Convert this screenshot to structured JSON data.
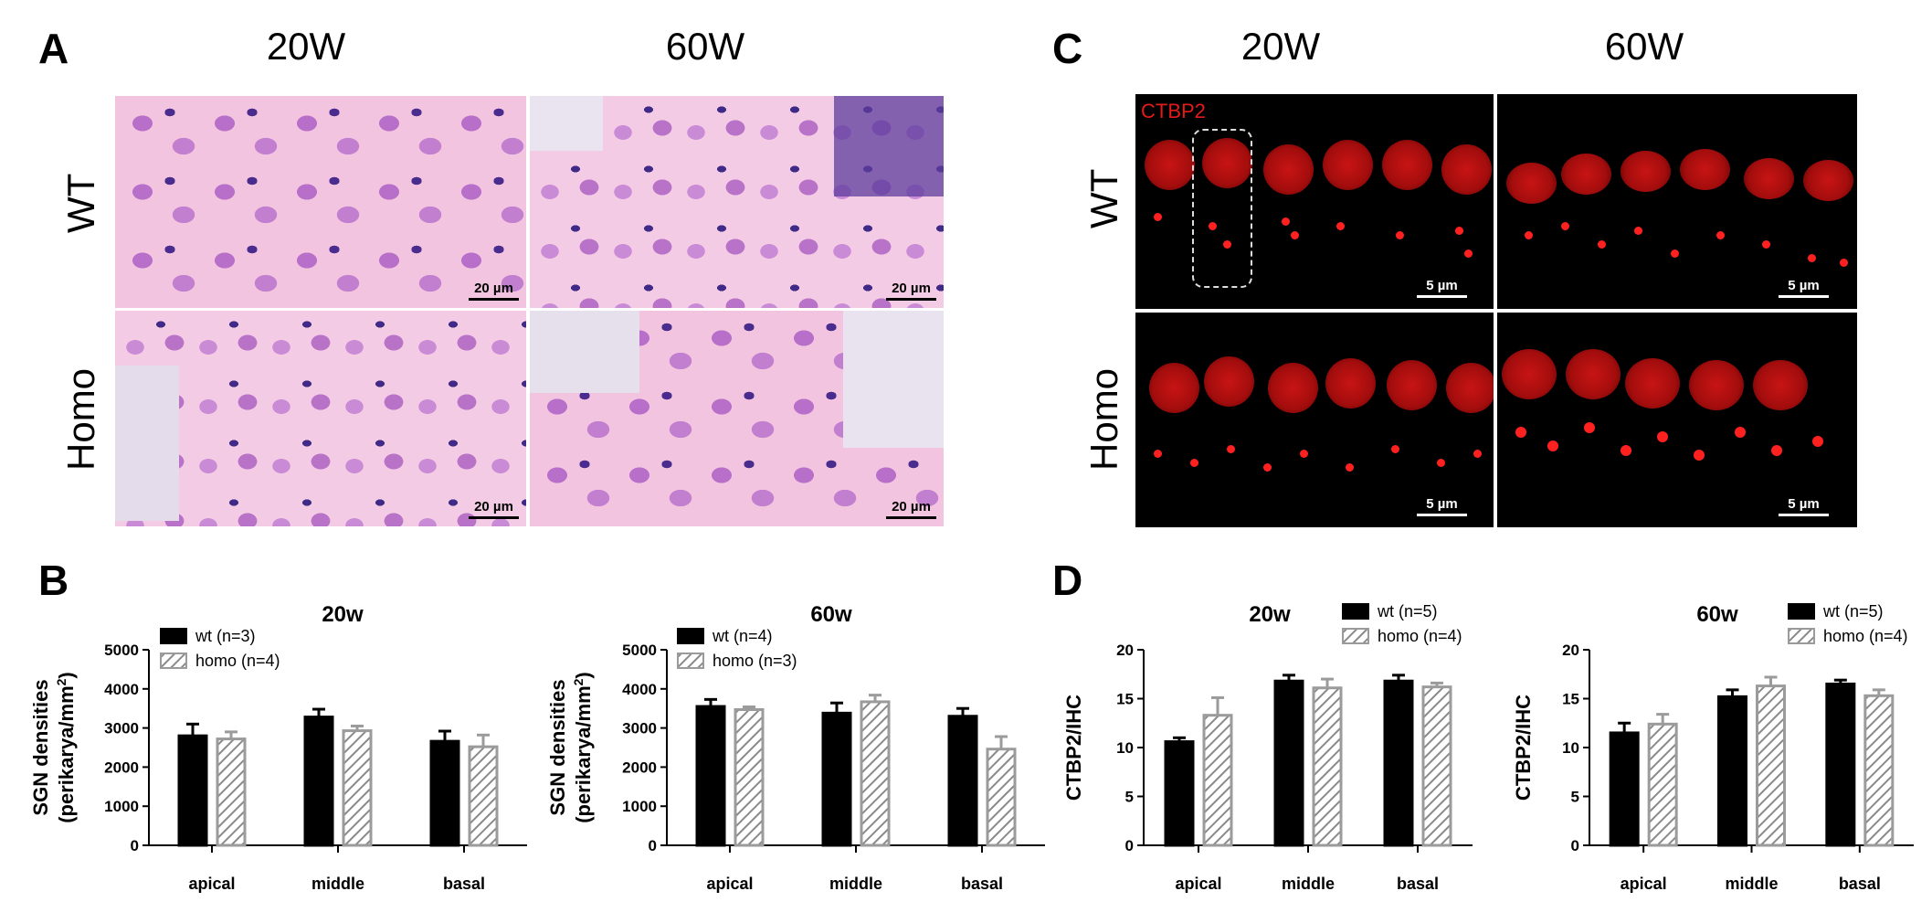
{
  "panels": {
    "A": {
      "label": "A",
      "col_titles": [
        "20W",
        "60W"
      ],
      "row_titles": [
        "WT",
        "Homo"
      ],
      "scale_bar": "20 µm"
    },
    "C": {
      "label": "C",
      "col_titles": [
        "20W",
        "60W"
      ],
      "row_titles": [
        "WT",
        "Homo"
      ],
      "scale_bar": "5 µm",
      "stain_label": "CTBP2"
    },
    "B": {
      "label": "B"
    },
    "D": {
      "label": "D"
    }
  },
  "colors": {
    "wt": "#000000",
    "homo": "#9b9b9b",
    "ctbp2": "#e31b1b"
  },
  "chart_data": [
    {
      "id": "B-20w",
      "type": "bar",
      "title": "20w",
      "ylabel": "SGN densities (perikarya/mm2)",
      "xlabel": "",
      "categories": [
        "apical",
        "middle",
        "basal"
      ],
      "ylim": [
        0,
        5000
      ],
      "yticks": [
        "0",
        "1000",
        "2000",
        "3000",
        "4000",
        "5000"
      ],
      "series": [
        {
          "name": "wt (n=3)",
          "values": [
            2800,
            3280,
            2660
          ],
          "errors": [
            300,
            200,
            260
          ]
        },
        {
          "name": "homo (n=4)",
          "values": [
            2720,
            2930,
            2520
          ],
          "errors": [
            180,
            120,
            300
          ]
        }
      ]
    },
    {
      "id": "B-60w",
      "type": "bar",
      "title": "60w",
      "ylabel": "SGN densities (perikarya/mm2)",
      "xlabel": "",
      "categories": [
        "apical",
        "middle",
        "basal"
      ],
      "ylim": [
        0,
        5000
      ],
      "yticks": [
        "0",
        "1000",
        "2000",
        "3000",
        "4000",
        "5000"
      ],
      "series": [
        {
          "name": "wt (n=4)",
          "values": [
            3550,
            3380,
            3300
          ],
          "errors": [
            180,
            260,
            200
          ]
        },
        {
          "name": "homo (n=3)",
          "values": [
            3470,
            3670,
            2460
          ],
          "errors": [
            70,
            170,
            320
          ]
        }
      ]
    },
    {
      "id": "D-20w",
      "type": "bar",
      "title": "20w",
      "ylabel": "CTBP2/IHC",
      "xlabel": "",
      "categories": [
        "apical",
        "middle",
        "basal"
      ],
      "ylim": [
        0,
        20
      ],
      "yticks": [
        "0",
        "5",
        "10",
        "15",
        "20"
      ],
      "series": [
        {
          "name": "wt (n=5)",
          "values": [
            10.6,
            16.8,
            16.8
          ],
          "errors": [
            0.4,
            0.6,
            0.6
          ]
        },
        {
          "name": "homo (n=4)",
          "values": [
            13.3,
            16.1,
            16.2
          ],
          "errors": [
            1.8,
            0.9,
            0.4
          ]
        }
      ]
    },
    {
      "id": "D-60w",
      "type": "bar",
      "title": "60w",
      "ylabel": "CTBP2/IHC",
      "xlabel": "",
      "categories": [
        "apical",
        "middle",
        "basal"
      ],
      "ylim": [
        0,
        20
      ],
      "yticks": [
        "0",
        "5",
        "10",
        "15",
        "20"
      ],
      "series": [
        {
          "name": "wt (n=5)",
          "values": [
            11.5,
            15.2,
            16.5
          ],
          "errors": [
            1.0,
            0.7,
            0.4
          ]
        },
        {
          "name": "homo (n=4)",
          "values": [
            12.4,
            16.3,
            15.3
          ],
          "errors": [
            1.0,
            0.9,
            0.6
          ]
        }
      ]
    }
  ]
}
